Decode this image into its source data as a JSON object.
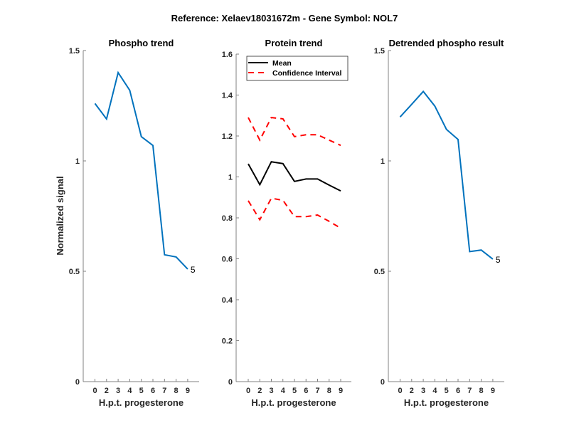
{
  "suptitle": "Reference:  Xelaev18031672m - Gene Symbol:  NOL7",
  "chart_data": [
    {
      "type": "line",
      "title": "Phospho trend",
      "xlabel": "H.p.t. progesterone",
      "ylabel": "Normalized signal",
      "categories": [
        "0",
        "2",
        "3",
        "4",
        "5",
        "6",
        "7",
        "8",
        "9"
      ],
      "ylim": [
        0,
        1.5
      ],
      "yticks": [
        "0",
        "0.5",
        "1",
        "1.5"
      ],
      "ytick_values": [
        0,
        0.5,
        1,
        1.5
      ],
      "grid": false,
      "series": [
        {
          "name": "Phospho",
          "color": "#0072BD",
          "style": "solid",
          "values": [
            1.26,
            1.19,
            1.4,
            1.32,
            1.11,
            1.07,
            0.575,
            0.565,
            0.51
          ]
        }
      ],
      "end_label": "5"
    },
    {
      "type": "line",
      "title": "Protein trend",
      "xlabel": "H.p.t. progesterone",
      "ylabel": "",
      "categories": [
        "0",
        "2",
        "3",
        "4",
        "5",
        "6",
        "7",
        "8",
        "9"
      ],
      "ylim": [
        0,
        1.6
      ],
      "yticks": [
        "0",
        "0.2",
        "0.4",
        "0.6",
        "0.8",
        "1",
        "1.2",
        "1.4",
        "1.6"
      ],
      "ytick_values": [
        0,
        0.2,
        0.4,
        0.6,
        0.8,
        1.0,
        1.2,
        1.4,
        1.6
      ],
      "grid": false,
      "legend": {
        "placement": "top-left",
        "entries": [
          "Mean",
          "Confidence Interval"
        ]
      },
      "series": [
        {
          "name": "Mean",
          "color": "#000000",
          "style": "solid",
          "values": [
            1.064,
            0.962,
            1.074,
            1.065,
            0.978,
            0.99,
            0.99,
            0.96,
            0.932
          ]
        },
        {
          "name": "Confidence Interval",
          "color": "#FF0000",
          "style": "dashed",
          "values": [
            1.29,
            1.18,
            1.29,
            1.284,
            1.197,
            1.206,
            1.206,
            1.18,
            1.154
          ]
        },
        {
          "name": "Confidence Interval (lower)",
          "color": "#FF0000",
          "style": "dashed",
          "values": [
            0.884,
            0.791,
            0.896,
            0.886,
            0.806,
            0.806,
            0.814,
            0.783,
            0.75
          ]
        }
      ]
    },
    {
      "type": "line",
      "title": "Detrended phospho result",
      "xlabel": "H.p.t. progesterone",
      "ylabel": "",
      "categories": [
        "0",
        "2",
        "3",
        "4",
        "5",
        "6",
        "7",
        "8",
        "9"
      ],
      "ylim": [
        0,
        1.5
      ],
      "yticks": [
        "0",
        "0.5",
        "1",
        "1.5"
      ],
      "ytick_values": [
        0,
        0.5,
        1,
        1.5
      ],
      "grid": false,
      "series": [
        {
          "name": "Detrended phospho",
          "color": "#0072BD",
          "style": "solid",
          "values": [
            1.199,
            1.256,
            1.315,
            1.248,
            1.143,
            1.097,
            0.589,
            0.596,
            0.555
          ]
        }
      ],
      "end_label": "5"
    }
  ]
}
